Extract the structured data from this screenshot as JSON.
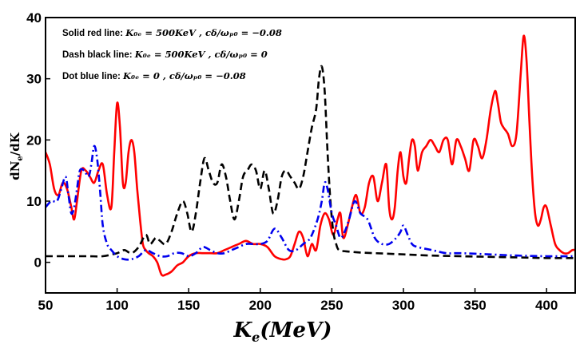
{
  "chart_data": {
    "type": "line",
    "xlabel": "K_e(MeV)",
    "ylabel": "dN_e/dK",
    "xlim": [
      50,
      420
    ],
    "ylim": [
      -5,
      40
    ],
    "xticks": [
      50,
      100,
      150,
      200,
      250,
      300,
      350,
      400
    ],
    "yticks": [
      0,
      10,
      20,
      30,
      40
    ],
    "grid": false,
    "legend_position": "top-left",
    "colors": {
      "red": "#ff0000",
      "black": "#000000",
      "blue": "#0000ee"
    },
    "legend": [
      {
        "prefix": "Solid red line: ",
        "params": "K₀ₑ = 500KeV ,  cδ/ωₚ₀ = −0.08"
      },
      {
        "prefix": "Dash black line: ",
        "params": "K₀ₑ = 500KeV ,  cδ/ωₚ₀ = 0"
      },
      {
        "prefix": "Dot blue line: ",
        "params": "K₀ₑ = 0 ,  cδ/ωₚ₀ = −0.08"
      }
    ],
    "series": [
      {
        "style": "solid",
        "color": "red",
        "x": [
          50,
          53,
          56,
          59,
          62,
          65,
          68,
          70,
          72,
          75,
          78,
          81,
          84,
          87,
          90,
          93,
          96,
          98,
          100,
          102,
          104,
          106,
          108,
          110,
          112,
          114,
          116,
          118,
          120,
          122,
          125,
          128,
          131,
          134,
          138,
          142,
          146,
          150,
          155,
          160,
          165,
          170,
          175,
          180,
          185,
          190,
          195,
          200,
          205,
          210,
          215,
          218,
          221,
          224,
          227,
          230,
          233,
          236,
          239,
          242,
          245,
          248,
          251,
          254,
          256,
          258,
          261,
          264,
          267,
          270,
          273,
          276,
          279,
          282,
          285,
          288,
          290,
          292,
          294,
          296,
          298,
          300,
          302,
          304,
          306,
          308,
          310,
          313,
          316,
          319,
          322,
          325,
          328,
          331,
          334,
          337,
          340,
          343,
          346,
          349,
          352,
          355,
          358,
          361,
          364,
          366,
          368,
          370,
          373,
          376,
          379,
          382,
          384,
          386,
          388,
          390,
          392,
          394,
          396,
          398,
          400,
          403,
          406,
          409,
          412,
          415,
          418,
          420
        ],
        "y": [
          18,
          16,
          12,
          11,
          13,
          12,
          9,
          7,
          10,
          15,
          15,
          14,
          13,
          15,
          16,
          11,
          9,
          18,
          26,
          22,
          13,
          13,
          18,
          20,
          18,
          12,
          7,
          3,
          2,
          1.5,
          1,
          0,
          -2,
          -2,
          -1.5,
          -0.5,
          0,
          1,
          1.5,
          1.5,
          1.5,
          1.5,
          2,
          2.5,
          3,
          3.5,
          3,
          3,
          2.5,
          1,
          0.5,
          0.5,
          1,
          3,
          5,
          4,
          1,
          3,
          2,
          6,
          8,
          7,
          4.5,
          7,
          8,
          4,
          6,
          9,
          11,
          8,
          9,
          13,
          14,
          10,
          13,
          16,
          9,
          7,
          9,
          15,
          18,
          14,
          13,
          17,
          20,
          19,
          15,
          18,
          19,
          20,
          19,
          18,
          20,
          20,
          16,
          20,
          19,
          17,
          15,
          20,
          19,
          17,
          20,
          25,
          28,
          26,
          23,
          22,
          21,
          19,
          21,
          31,
          37,
          33,
          23,
          14,
          8,
          6,
          7,
          9,
          9,
          6,
          3,
          2,
          1.5,
          1.5,
          2,
          2
        ]
      },
      {
        "style": "dash",
        "color": "black",
        "x": [
          50,
          60,
          70,
          80,
          90,
          100,
          105,
          110,
          115,
          120,
          123,
          127,
          130,
          134,
          138,
          142,
          146,
          149,
          152,
          155,
          158,
          161,
          164,
          167,
          170,
          173,
          176,
          179,
          182,
          185,
          188,
          191,
          194,
          197,
          200,
          203,
          206,
          209,
          212,
          215,
          218,
          221,
          224,
          227,
          230,
          233,
          236,
          239,
          241,
          243,
          245,
          247,
          249,
          251,
          253,
          255,
          260,
          270,
          280,
          300,
          320,
          340,
          360,
          380,
          400,
          420
        ],
        "y": [
          1,
          1,
          1,
          1,
          1,
          1.5,
          2,
          1.5,
          2.5,
          4.5,
          3,
          4,
          3.5,
          3,
          5,
          8,
          10,
          8,
          5,
          8,
          13,
          17,
          15,
          13,
          13,
          16,
          14,
          10,
          7,
          10,
          14,
          15,
          16,
          15,
          12,
          15,
          12,
          8,
          10,
          14,
          15,
          14,
          13,
          12,
          14,
          18,
          22,
          25,
          30,
          32,
          28,
          18,
          10,
          5,
          3,
          2,
          1.8,
          1.6,
          1.5,
          1.3,
          1.1,
          1,
          0.9,
          0.8,
          0.7,
          0.7
        ]
      },
      {
        "style": "dashdot",
        "color": "blue",
        "x": [
          50,
          54,
          58,
          61,
          64,
          66,
          68,
          70,
          72,
          74,
          77,
          80,
          82,
          84,
          86,
          88,
          90,
          93,
          96,
          100,
          105,
          110,
          115,
          120,
          125,
          130,
          135,
          140,
          145,
          150,
          155,
          160,
          165,
          170,
          175,
          180,
          185,
          190,
          195,
          200,
          205,
          210,
          215,
          220,
          225,
          230,
          235,
          240,
          243,
          245,
          247,
          250,
          253,
          256,
          259,
          262,
          266,
          270,
          275,
          280,
          285,
          290,
          295,
          298,
          300,
          303,
          306,
          310,
          320,
          330,
          340,
          360,
          380,
          400,
          420
        ],
        "y": [
          9,
          10,
          10,
          12,
          14,
          11,
          8,
          9,
          12,
          15,
          15,
          14,
          16,
          19,
          17,
          12,
          6,
          3,
          2,
          1,
          0.5,
          0.5,
          1,
          2,
          1.5,
          1,
          1,
          1.5,
          1.5,
          1,
          1.5,
          2.5,
          2,
          1.5,
          1.5,
          2,
          2.5,
          3,
          3,
          3,
          3.5,
          5.5,
          4,
          2,
          2,
          3,
          4,
          7,
          10,
          13,
          12,
          8,
          6,
          4,
          5,
          7,
          10,
          8,
          7,
          4,
          3,
          3,
          4,
          5,
          6,
          4.5,
          3,
          2.5,
          2,
          1.5,
          1.5,
          1.3,
          1.1,
          1,
          1
        ]
      }
    ]
  }
}
